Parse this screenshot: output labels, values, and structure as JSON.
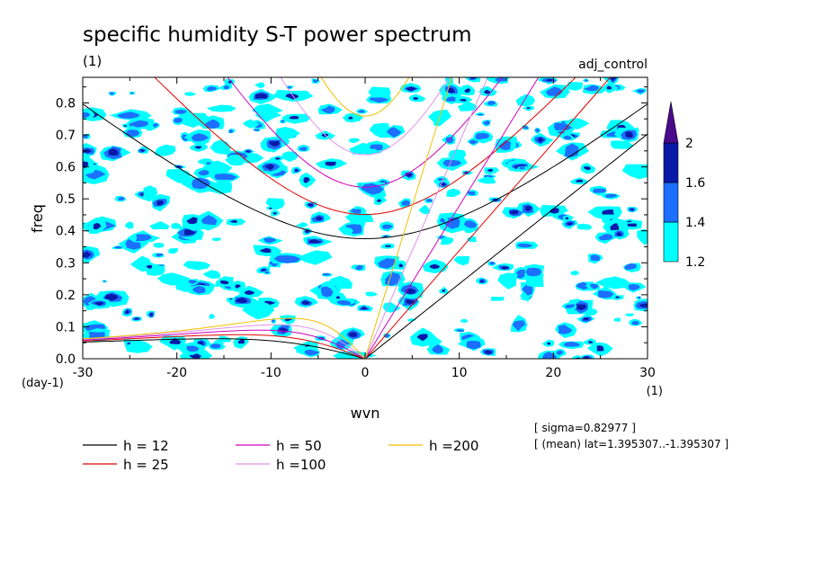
{
  "chart_data": {
    "type": "contour",
    "title": "specific humidity S-T power spectrum",
    "title_unit": "(1)",
    "experiment": "adj_control",
    "xlabel": "wvn",
    "x_unit": "(1)",
    "ylabel": "freq",
    "y_unit": "(day-1)",
    "xlim": [
      -30,
      30
    ],
    "ylim": [
      0,
      0.88
    ],
    "xticks": [
      "-30",
      "-20",
      "-10",
      "0",
      "10",
      "20",
      "30"
    ],
    "yticks": [
      "0.0",
      "0.1",
      "0.2",
      "0.3",
      "0.4",
      "0.5",
      "0.6",
      "0.7",
      "0.8"
    ],
    "colorbar": {
      "levels": [
        "1.2",
        "1.4",
        "1.6",
        "2"
      ],
      "colors": [
        "#00ffff",
        "#1c6fff",
        "#0a1aa8",
        "#4a0a8c"
      ]
    },
    "dispersion_curves": [
      {
        "label": "h = 12",
        "h": 12,
        "color": "#000000"
      },
      {
        "label": "h = 25",
        "h": 25,
        "color": "#e00000"
      },
      {
        "label": "h = 50",
        "h": 50,
        "color": "#d000c0"
      },
      {
        "label": "h =100",
        "h": 100,
        "color": "#e090e8"
      },
      {
        "label": "h =200",
        "h": 200,
        "color": "#f0c000"
      }
    ],
    "annotations": [
      "[ sigma=0.82977 ]",
      "[ (mean) lat=1.395307..-1.395307 ]"
    ]
  }
}
